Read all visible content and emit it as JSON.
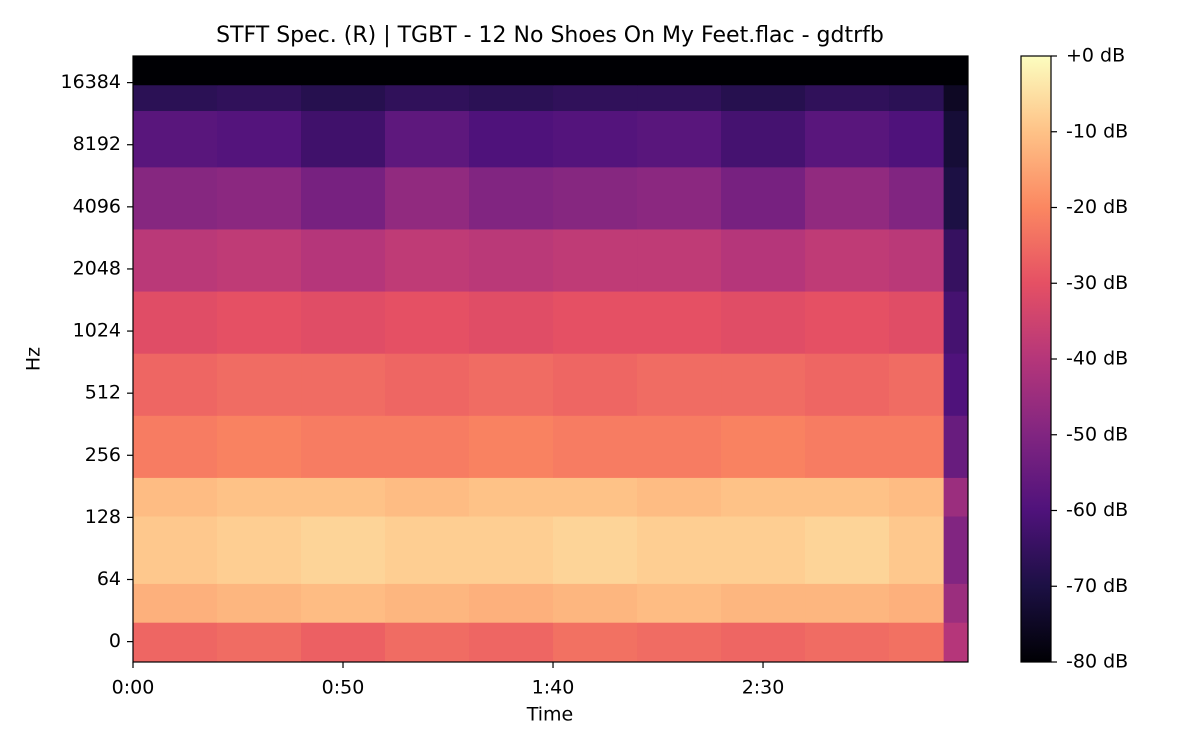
{
  "chart_data": {
    "type": "spectrogram",
    "title": "STFT Spec. (R) | TGBT - 12 No Shoes On My Feet.flac - gdtrfb",
    "x_label": "Time",
    "y_label": "Hz",
    "colormap": "magma",
    "xlim": [
      0,
      198.8
    ],
    "xticks": [
      {
        "value": 0,
        "label": "0:00"
      },
      {
        "value": 50,
        "label": "0:50"
      },
      {
        "value": 100,
        "label": "1:40"
      },
      {
        "value": 150,
        "label": "2:30"
      }
    ],
    "ylim": [
      -21,
      22050
    ],
    "yscale": "symlog",
    "linthresh": 64,
    "log_base": 2,
    "yticks": [
      0,
      64,
      128,
      256,
      512,
      1024,
      2048,
      4096,
      8192,
      16384
    ],
    "time_edges": [
      0,
      20,
      40,
      60,
      80,
      100,
      120,
      140,
      160,
      180,
      193,
      198.8
    ],
    "freq_edges": [
      -21,
      20,
      60,
      130,
      200,
      400,
      800,
      1600,
      3200,
      6400,
      12000,
      16000,
      22050
    ],
    "z": [
      [
        -26,
        -25,
        -27,
        -25,
        -26,
        -24,
        -25,
        -26,
        -25,
        -24,
        -40
      ],
      [
        -13,
        -12,
        -11,
        -12,
        -13,
        -12,
        -11,
        -12,
        -12,
        -13,
        -45
      ],
      [
        -9,
        -8,
        -7,
        -8,
        -8,
        -7,
        -8,
        -8,
        -7,
        -9,
        -50
      ],
      [
        -11,
        -10,
        -10,
        -11,
        -10,
        -10,
        -11,
        -10,
        -10,
        -11,
        -45
      ],
      [
        -22,
        -21,
        -22,
        -22,
        -21,
        -22,
        -22,
        -21,
        -22,
        -22,
        -55
      ],
      [
        -26,
        -25,
        -25,
        -26,
        -25,
        -26,
        -25,
        -25,
        -26,
        -25,
        -60
      ],
      [
        -31,
        -30,
        -31,
        -30,
        -31,
        -30,
        -30,
        -31,
        -30,
        -31,
        -62
      ],
      [
        -39,
        -38,
        -40,
        -38,
        -39,
        -38,
        -38,
        -40,
        -38,
        -39,
        -65
      ],
      [
        -49,
        -48,
        -52,
        -47,
        -50,
        -49,
        -48,
        -52,
        -47,
        -50,
        -70
      ],
      [
        -58,
        -59,
        -63,
        -57,
        -60,
        -59,
        -58,
        -62,
        -58,
        -60,
        -72
      ],
      [
        -67,
        -66,
        -68,
        -66,
        -67,
        -66,
        -66,
        -68,
        -66,
        -67,
        -75
      ],
      [
        -80,
        -80,
        -80,
        -80,
        -80,
        -80,
        -80,
        -80,
        -80,
        -80,
        -80
      ]
    ],
    "colorbar": {
      "lim": [
        -80,
        0
      ],
      "ticks": [
        {
          "value": 0,
          "label": "+0 dB"
        },
        {
          "value": -10,
          "label": "-10 dB"
        },
        {
          "value": -20,
          "label": "-20 dB"
        },
        {
          "value": -30,
          "label": "-30 dB"
        },
        {
          "value": -40,
          "label": "-40 dB"
        },
        {
          "value": -50,
          "label": "-50 dB"
        },
        {
          "value": -60,
          "label": "-60 dB"
        },
        {
          "value": -70,
          "label": "-70 dB"
        },
        {
          "value": -80,
          "label": "-80 dB"
        }
      ]
    }
  }
}
